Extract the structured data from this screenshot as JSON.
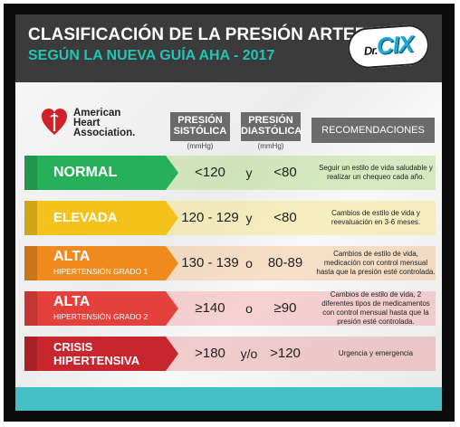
{
  "header": {
    "title": "CLASIFICACIÓN DE LA PRESIÓN ARTERIAL",
    "subtitle": "SEGÚN LA NUEVA GUÍA AHA - 2017",
    "badge": "CIX",
    "badge_prefix": "Dr."
  },
  "logo": {
    "text": "American\nHeart\nAssociation."
  },
  "columns": {
    "systolic": {
      "line1": "PRESIÓN",
      "line2": "SISTÓLICA",
      "unit": "(mmHg)"
    },
    "diastolic": {
      "line1": "PRESIÓN",
      "line2": "DIASTÓLICA",
      "unit": "(mmHg)"
    },
    "recommendations": "RECOMENDACIONES"
  },
  "rows": [
    {
      "label": "NORMAL",
      "sublabel": "",
      "systolic": "<120",
      "conj": "y",
      "diastolic": "<80",
      "recommendation": "Seguir un estilo de vida saludable y realizar un chequeo cada año.",
      "color": "#27b05a",
      "band": "#9bd15b"
    },
    {
      "label": "ELEVADA",
      "sublabel": "",
      "systolic": "120 - 129",
      "conj": "y",
      "diastolic": "<80",
      "recommendation": "Cambios de estilo de vida y reevaluación en 3-6 meses.",
      "color": "#f3c31c",
      "band": "#f6e05a"
    },
    {
      "label": "ALTA",
      "sublabel": "HIPERTENSIÓN GRADO 1",
      "systolic": "130 - 139",
      "conj": "o",
      "diastolic": "80-89",
      "recommendation": "Cambios de estilo de vida, medicación con control mensual hasta que la presión esté controlada.",
      "color": "#ef8a1e",
      "band": "#f5b06a"
    },
    {
      "label": "ALTA",
      "sublabel": "HIPERTENSIÓN GRADO 2",
      "systolic": "≥140",
      "conj": "o",
      "diastolic": "≥90",
      "recommendation": "Cambios de estilo de vida, 2 diferentes tipos de medicamentos con control mensual hasta que la presión esté controlada.",
      "color": "#e4403c",
      "band": "#f08a8a"
    },
    {
      "label": "CRISIS\nHIPERTENSIVA",
      "sublabel": "",
      "systolic": ">180",
      "conj": "y/o",
      "diastolic": ">120",
      "recommendation": "Urgencia y emergencia",
      "color": "#c8262e",
      "band": "#e27b7f"
    }
  ]
}
